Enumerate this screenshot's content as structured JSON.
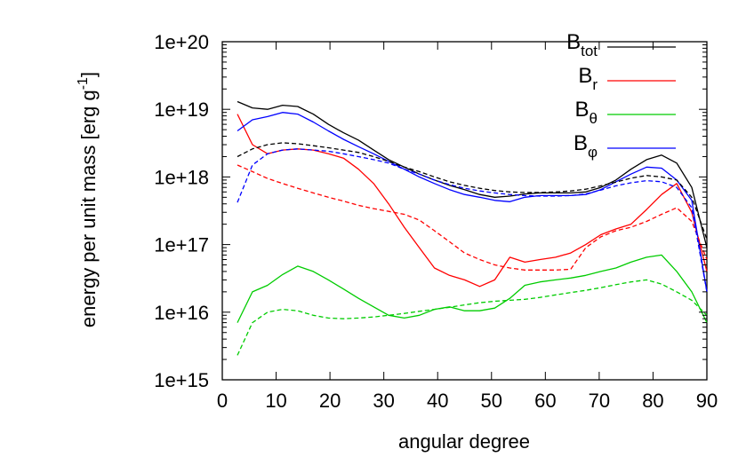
{
  "chart_data": {
    "type": "line",
    "xlabel": "angular degree",
    "ylabel": "energy per unit mass [erg g",
    "ylabel_sup": "-1",
    "ylabel_close": "]",
    "xlim": [
      0,
      90
    ],
    "ylim": [
      1000000000000000.0,
      1e+20
    ],
    "yscale": "log",
    "grid": false,
    "legend_position": "top-right",
    "x_ticks": [
      "0",
      "10",
      "20",
      "30",
      "40",
      "50",
      "60",
      "70",
      "80",
      "90"
    ],
    "y_ticks": [
      "1e+15",
      "1e+16",
      "1e+17",
      "1e+18",
      "1e+19",
      "1e+20"
    ],
    "legend": [
      {
        "base": "B",
        "sub": "tot",
        "color": "#000000"
      },
      {
        "base": "B",
        "sub": "r",
        "color": "#ff0000"
      },
      {
        "base": "B",
        "sub": "θ",
        "color": "#00cc00"
      },
      {
        "base": "B",
        "sub": "φ",
        "color": "#0000ff"
      }
    ],
    "series": [
      {
        "name": "B_tot",
        "color": "#000000",
        "style": "solid",
        "x": [
          2.8,
          5.6,
          8.4,
          11.2,
          14,
          16.9,
          19.7,
          22.5,
          25.3,
          28.1,
          30.9,
          33.8,
          36.6,
          39.4,
          42.2,
          45,
          47.8,
          50.6,
          53.4,
          56.2,
          59,
          61.9,
          64.7,
          67.5,
          70.3,
          73.1,
          75.9,
          78.8,
          81.6,
          84.4,
          87.2,
          90
        ],
        "y": [
          1.3e+19,
          1.05e+19,
          1e+19,
          1.15e+19,
          1.1e+19,
          8.5e+18,
          6e+18,
          4.5e+18,
          3.5e+18,
          2.5e+18,
          1.8e+18,
          1.4e+18,
          1.1e+18,
          9e+17,
          7.5e+17,
          6.5e+17,
          5.5e+17,
          5e+17,
          5.2e+17,
          5.6e+17,
          5.8e+17,
          5.8e+17,
          5.8e+17,
          6e+17,
          7e+17,
          9e+17,
          1.3e+18,
          1.8e+18,
          2.1e+18,
          1.6e+18,
          7e+17,
          9e+16
        ]
      },
      {
        "name": "B_r",
        "color": "#ff0000",
        "style": "solid",
        "x": [
          2.8,
          5.6,
          8.4,
          11.2,
          14,
          16.9,
          19.7,
          22.5,
          25.3,
          28.1,
          30.9,
          33.8,
          36.6,
          39.4,
          42.2,
          45,
          47.8,
          50.6,
          53.4,
          56.2,
          59,
          61.9,
          64.7,
          67.5,
          70.3,
          73.1,
          75.9,
          78.8,
          81.6,
          84.4,
          87.2,
          90
        ],
        "y": [
          8.5e+18,
          3e+18,
          2.2e+18,
          2.5e+18,
          2.6e+18,
          2.5e+18,
          2.2e+18,
          1.9e+18,
          1.3e+18,
          8e+17,
          4e+17,
          1.8e+17,
          9e+16,
          4.5e+16,
          3.5e+16,
          3e+16,
          2.4e+16,
          3e+16,
          6.5e+16,
          5.5e+16,
          6e+16,
          6.5e+16,
          7.5e+16,
          1e+17,
          1.4e+17,
          1.7e+17,
          2e+17,
          3.3e+17,
          5.5e+17,
          8e+17,
          3e+17,
          4e+16
        ]
      },
      {
        "name": "B_theta",
        "color": "#00cc00",
        "style": "solid",
        "x": [
          2.8,
          5.6,
          8.4,
          11.2,
          14,
          16.9,
          19.7,
          22.5,
          25.3,
          28.1,
          30.9,
          33.8,
          36.6,
          39.4,
          42.2,
          45,
          47.8,
          50.6,
          53.4,
          56.2,
          59,
          61.9,
          64.7,
          67.5,
          70.3,
          73.1,
          75.9,
          78.8,
          81.6,
          84.4,
          87.2,
          90
        ],
        "y": [
          7000000000000000.0,
          2e+16,
          2.5e+16,
          3.6e+16,
          4.8e+16,
          4e+16,
          3e+16,
          2.2e+16,
          1.6e+16,
          1.2e+16,
          9000000000000000.0,
          8200000000000000.0,
          9000000000000000.0,
          1.1e+16,
          1.2e+16,
          1.05e+16,
          1.05e+16,
          1.15e+16,
          1.6e+16,
          2.5e+16,
          2.8e+16,
          3e+16,
          3.2e+16,
          3.5e+16,
          4e+16,
          4.5e+16,
          5.5e+16,
          6.5e+16,
          7e+16,
          4e+16,
          2e+16,
          7000000000000000.0
        ]
      },
      {
        "name": "B_phi",
        "color": "#0000ff",
        "style": "solid",
        "x": [
          2.8,
          5.6,
          8.4,
          11.2,
          14,
          16.9,
          19.7,
          22.5,
          25.3,
          28.1,
          30.9,
          33.8,
          36.6,
          39.4,
          42.2,
          45,
          47.8,
          50.6,
          53.4,
          56.2,
          59,
          61.9,
          64.7,
          67.5,
          70.3,
          73.1,
          75.9,
          78.8,
          81.6,
          84.4,
          87.2,
          90
        ],
        "y": [
          4.8e+18,
          7e+18,
          7.8e+18,
          9e+18,
          8.5e+18,
          6.5e+18,
          4.8e+18,
          3.6e+18,
          2.8e+18,
          2.2e+18,
          1.7e+18,
          1.3e+18,
          1e+18,
          8e+17,
          6.5e+17,
          5.5e+17,
          5e+17,
          4.5e+17,
          4.3e+17,
          5e+17,
          5.3e+17,
          5.3e+17,
          5.3e+17,
          5.5e+17,
          6.5e+17,
          8.5e+17,
          1.1e+18,
          1.4e+18,
          1.35e+18,
          9e+17,
          4.5e+17,
          2e+16
        ]
      },
      {
        "name": "B_tot_dashed",
        "color": "#000000",
        "style": "dashed",
        "x": [
          2.8,
          5.6,
          8.4,
          11.2,
          14,
          16.9,
          19.7,
          22.5,
          25.3,
          28.1,
          30.9,
          33.8,
          36.6,
          39.4,
          42.2,
          45,
          47.8,
          50.6,
          53.4,
          56.2,
          59,
          61.9,
          64.7,
          67.5,
          70.3,
          73.1,
          75.9,
          78.8,
          81.6,
          84.4,
          87.2,
          90
        ],
        "y": [
          2e+18,
          2.6e+18,
          3e+18,
          3.2e+18,
          3.1e+18,
          2.9e+18,
          2.7e+18,
          2.5e+18,
          2.3e+18,
          2e+18,
          1.7e+18,
          1.4e+18,
          1.2e+18,
          1e+18,
          8.5e+17,
          7.5e+17,
          6.8e+17,
          6.3e+17,
          6e+17,
          5.9e+17,
          5.9e+17,
          6e+17,
          6.2e+17,
          6.6e+17,
          7.4e+17,
          8.4e+17,
          9.6e+17,
          1.05e+18,
          1e+18,
          9e+17,
          5e+17,
          1.2e+17
        ]
      },
      {
        "name": "B_r_dashed",
        "color": "#ff0000",
        "style": "dashed",
        "x": [
          2.8,
          5.6,
          8.4,
          11.2,
          14,
          16.9,
          19.7,
          22.5,
          25.3,
          28.1,
          30.9,
          33.8,
          36.6,
          39.4,
          42.2,
          45,
          47.8,
          50.6,
          53.4,
          56.2,
          59,
          61.9,
          64.7,
          67.5,
          70.3,
          73.1,
          75.9,
          78.8,
          81.6,
          84.4,
          87.2,
          90
        ],
        "y": [
          1.5e+18,
          1.2e+18,
          9.5e+17,
          8e+17,
          6.8e+17,
          5.8e+17,
          5e+17,
          4.4e+17,
          3.8e+17,
          3.4e+17,
          3.1e+17,
          2.8e+17,
          2.3e+17,
          1.6e+17,
          1.1e+17,
          7.5e+16,
          6e+16,
          5e+16,
          4.5e+16,
          4.2e+16,
          4.2e+16,
          4.2e+16,
          4.3e+16,
          9e+16,
          1.3e+17,
          1.6e+17,
          1.8e+17,
          2.2e+17,
          2.8e+17,
          3.5e+17,
          2.2e+17,
          6e+16
        ]
      },
      {
        "name": "B_theta_dashed",
        "color": "#00cc00",
        "style": "dashed",
        "x": [
          2.8,
          5.6,
          8.4,
          11.2,
          14,
          16.9,
          19.7,
          22.5,
          25.3,
          28.1,
          30.9,
          33.8,
          36.6,
          39.4,
          42.2,
          45,
          47.8,
          50.6,
          53.4,
          56.2,
          59,
          61.9,
          64.7,
          67.5,
          70.3,
          73.1,
          75.9,
          78.8,
          81.6,
          84.4,
          87.2,
          90
        ],
        "y": [
          2300000000000000.0,
          7000000000000000.0,
          1e+16,
          1.1e+16,
          1.05e+16,
          9000000000000000.0,
          8200000000000000.0,
          8000000000000000.0,
          8200000000000000.0,
          8500000000000000.0,
          9000000000000000.0,
          9600000000000000.0,
          1.03e+16,
          1.1e+16,
          1.18e+16,
          1.28e+16,
          1.38e+16,
          1.45e+16,
          1.5e+16,
          1.55e+16,
          1.65e+16,
          1.8e+16,
          1.95e+16,
          2.1e+16,
          2.3e+16,
          2.55e+16,
          2.8e+16,
          3e+16,
          2.6e+16,
          2e+16,
          1.5e+16,
          9000000000000000.0
        ]
      },
      {
        "name": "B_phi_dashed",
        "color": "#0000ff",
        "style": "dashed",
        "x": [
          2.8,
          5.6,
          8.4,
          11.2,
          14,
          16.9,
          19.7,
          22.5,
          25.3,
          28.1,
          30.9,
          33.8,
          36.6,
          39.4,
          42.2,
          45,
          47.8,
          50.6,
          53.4,
          56.2,
          59,
          61.9,
          64.7,
          67.5,
          70.3,
          73.1,
          75.9,
          78.8,
          81.6,
          84.4,
          87.2,
          90
        ],
        "y": [
          4.2e+17,
          1.5e+18,
          2.2e+18,
          2.5e+18,
          2.6e+18,
          2.5e+18,
          2.4e+18,
          2.2e+18,
          2e+18,
          1.8e+18,
          1.6e+18,
          1.3e+18,
          1.1e+18,
          9e+17,
          7.7e+17,
          6.8e+17,
          6.2e+17,
          5.8e+17,
          5.5e+17,
          5.3e+17,
          5.2e+17,
          5.2e+17,
          5.3e+17,
          5.6e+17,
          6.4e+17,
          7.4e+17,
          8.2e+17,
          8.8e+17,
          8.5e+17,
          7e+17,
          3.5e+17,
          2e+16
        ]
      }
    ]
  }
}
